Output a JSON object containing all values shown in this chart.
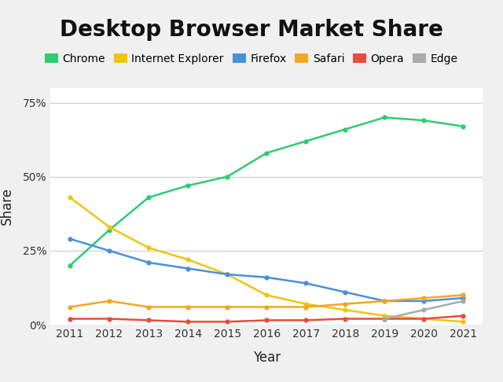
{
  "title": "Desktop Browser Market Share",
  "xlabel": "Year",
  "ylabel": "Share",
  "years": [
    2011,
    2012,
    2013,
    2014,
    2015,
    2016,
    2017,
    2018,
    2019,
    2020,
    2021
  ],
  "series": {
    "Chrome": {
      "color": "#2ecc71",
      "values": [
        20,
        32,
        43,
        47,
        50,
        58,
        62,
        66,
        70,
        69,
        67
      ]
    },
    "Internet Explorer": {
      "color": "#f1c40f",
      "values": [
        43,
        33,
        26,
        22,
        17,
        10,
        7,
        5,
        3,
        2,
        1
      ]
    },
    "Firefox": {
      "color": "#4a90d9",
      "values": [
        29,
        25,
        21,
        19,
        17,
        16,
        14,
        11,
        8,
        8,
        9
      ]
    },
    "Safari": {
      "color": "#f5a623",
      "values": [
        6,
        8,
        6,
        6,
        6,
        6,
        6,
        7,
        8,
        9,
        10
      ]
    },
    "Opera": {
      "color": "#e74c3c",
      "values": [
        2,
        2,
        1.5,
        1,
        1,
        1.5,
        1.5,
        2,
        2,
        2,
        3
      ]
    },
    "Edge": {
      "color": "#aaaaaa",
      "values": [
        null,
        null,
        null,
        null,
        null,
        null,
        null,
        null,
        2,
        5,
        8
      ]
    }
  },
  "ylim": [
    0,
    80
  ],
  "yticks": [
    0,
    25,
    50,
    75
  ],
  "ytick_labels": [
    "0%",
    "25%",
    "50%",
    "75%"
  ],
  "background_color": "#f0f0f0",
  "plot_background_color": "#ffffff",
  "grid_color": "#cccccc",
  "title_fontsize": 20,
  "axis_label_fontsize": 12,
  "tick_fontsize": 10,
  "legend_fontsize": 10,
  "line_width": 1.8,
  "marker": "o",
  "marker_size": 3.5
}
